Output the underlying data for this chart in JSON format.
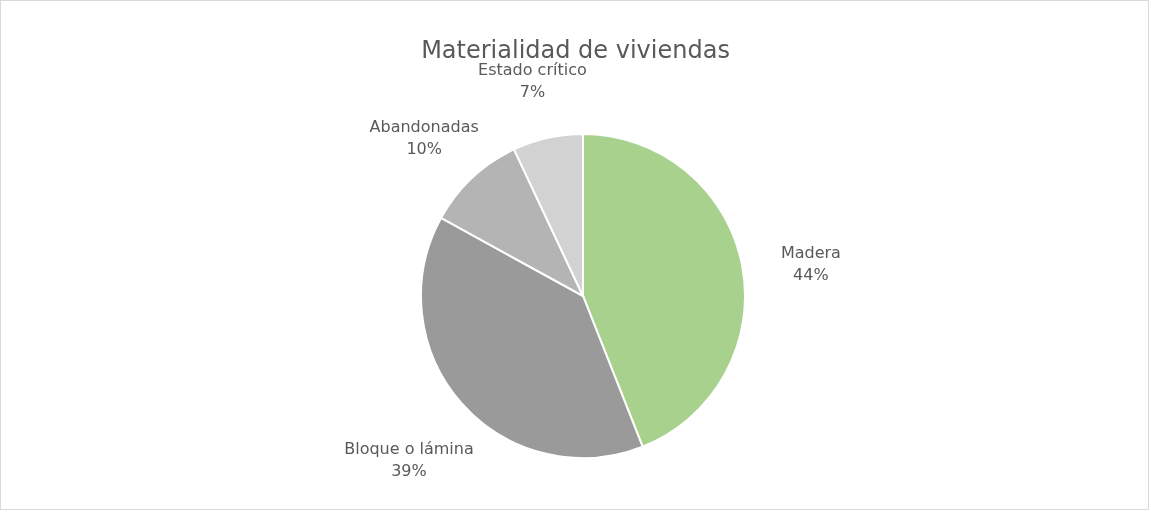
{
  "chart_data": {
    "type": "pie",
    "title": "Materialidad de viviendas",
    "categories": [
      "Madera",
      "Bloque o lámina",
      "Abandonadas",
      "Estado crítico"
    ],
    "values": [
      44,
      39,
      10,
      7
    ],
    "colors": [
      "#a9d18e",
      "#9a9a9a",
      "#b4b4b4",
      "#d2d2d2"
    ],
    "value_labels": [
      "44%",
      "39%",
      "10%",
      "7%"
    ],
    "legend": false
  }
}
